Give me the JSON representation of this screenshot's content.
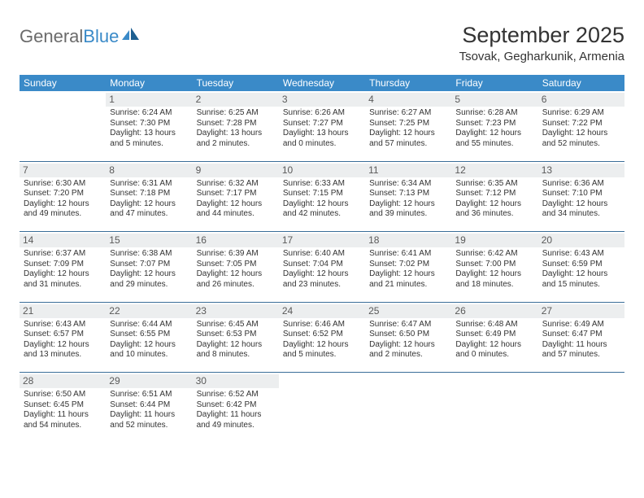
{
  "brand": {
    "part1": "General",
    "part2": "Blue"
  },
  "title": "September 2025",
  "location": "Tsovak, Gegharkunik, Armenia",
  "colors": {
    "header_bg": "#3a8ac8",
    "header_text": "#ffffff",
    "daynum_bg": "#eceeef",
    "daynum_text": "#5a5a5a",
    "rule": "#3a6e99",
    "body_text": "#333333",
    "logo_gray": "#6b6b6b",
    "logo_blue": "#3a8ac8",
    "page_bg": "#ffffff"
  },
  "dow": [
    "Sunday",
    "Monday",
    "Tuesday",
    "Wednesday",
    "Thursday",
    "Friday",
    "Saturday"
  ],
  "weeks": [
    [
      null,
      {
        "n": "1",
        "sr": "6:24 AM",
        "ss": "7:30 PM",
        "dl": "13 hours and 5 minutes."
      },
      {
        "n": "2",
        "sr": "6:25 AM",
        "ss": "7:28 PM",
        "dl": "13 hours and 2 minutes."
      },
      {
        "n": "3",
        "sr": "6:26 AM",
        "ss": "7:27 PM",
        "dl": "13 hours and 0 minutes."
      },
      {
        "n": "4",
        "sr": "6:27 AM",
        "ss": "7:25 PM",
        "dl": "12 hours and 57 minutes."
      },
      {
        "n": "5",
        "sr": "6:28 AM",
        "ss": "7:23 PM",
        "dl": "12 hours and 55 minutes."
      },
      {
        "n": "6",
        "sr": "6:29 AM",
        "ss": "7:22 PM",
        "dl": "12 hours and 52 minutes."
      }
    ],
    [
      {
        "n": "7",
        "sr": "6:30 AM",
        "ss": "7:20 PM",
        "dl": "12 hours and 49 minutes."
      },
      {
        "n": "8",
        "sr": "6:31 AM",
        "ss": "7:18 PM",
        "dl": "12 hours and 47 minutes."
      },
      {
        "n": "9",
        "sr": "6:32 AM",
        "ss": "7:17 PM",
        "dl": "12 hours and 44 minutes."
      },
      {
        "n": "10",
        "sr": "6:33 AM",
        "ss": "7:15 PM",
        "dl": "12 hours and 42 minutes."
      },
      {
        "n": "11",
        "sr": "6:34 AM",
        "ss": "7:13 PM",
        "dl": "12 hours and 39 minutes."
      },
      {
        "n": "12",
        "sr": "6:35 AM",
        "ss": "7:12 PM",
        "dl": "12 hours and 36 minutes."
      },
      {
        "n": "13",
        "sr": "6:36 AM",
        "ss": "7:10 PM",
        "dl": "12 hours and 34 minutes."
      }
    ],
    [
      {
        "n": "14",
        "sr": "6:37 AM",
        "ss": "7:09 PM",
        "dl": "12 hours and 31 minutes."
      },
      {
        "n": "15",
        "sr": "6:38 AM",
        "ss": "7:07 PM",
        "dl": "12 hours and 29 minutes."
      },
      {
        "n": "16",
        "sr": "6:39 AM",
        "ss": "7:05 PM",
        "dl": "12 hours and 26 minutes."
      },
      {
        "n": "17",
        "sr": "6:40 AM",
        "ss": "7:04 PM",
        "dl": "12 hours and 23 minutes."
      },
      {
        "n": "18",
        "sr": "6:41 AM",
        "ss": "7:02 PM",
        "dl": "12 hours and 21 minutes."
      },
      {
        "n": "19",
        "sr": "6:42 AM",
        "ss": "7:00 PM",
        "dl": "12 hours and 18 minutes."
      },
      {
        "n": "20",
        "sr": "6:43 AM",
        "ss": "6:59 PM",
        "dl": "12 hours and 15 minutes."
      }
    ],
    [
      {
        "n": "21",
        "sr": "6:43 AM",
        "ss": "6:57 PM",
        "dl": "12 hours and 13 minutes."
      },
      {
        "n": "22",
        "sr": "6:44 AM",
        "ss": "6:55 PM",
        "dl": "12 hours and 10 minutes."
      },
      {
        "n": "23",
        "sr": "6:45 AM",
        "ss": "6:53 PM",
        "dl": "12 hours and 8 minutes."
      },
      {
        "n": "24",
        "sr": "6:46 AM",
        "ss": "6:52 PM",
        "dl": "12 hours and 5 minutes."
      },
      {
        "n": "25",
        "sr": "6:47 AM",
        "ss": "6:50 PM",
        "dl": "12 hours and 2 minutes."
      },
      {
        "n": "26",
        "sr": "6:48 AM",
        "ss": "6:49 PM",
        "dl": "12 hours and 0 minutes."
      },
      {
        "n": "27",
        "sr": "6:49 AM",
        "ss": "6:47 PM",
        "dl": "11 hours and 57 minutes."
      }
    ],
    [
      {
        "n": "28",
        "sr": "6:50 AM",
        "ss": "6:45 PM",
        "dl": "11 hours and 54 minutes."
      },
      {
        "n": "29",
        "sr": "6:51 AM",
        "ss": "6:44 PM",
        "dl": "11 hours and 52 minutes."
      },
      {
        "n": "30",
        "sr": "6:52 AM",
        "ss": "6:42 PM",
        "dl": "11 hours and 49 minutes."
      },
      null,
      null,
      null,
      null
    ]
  ],
  "labels": {
    "sunrise": "Sunrise:",
    "sunset": "Sunset:",
    "daylight": "Daylight:"
  }
}
